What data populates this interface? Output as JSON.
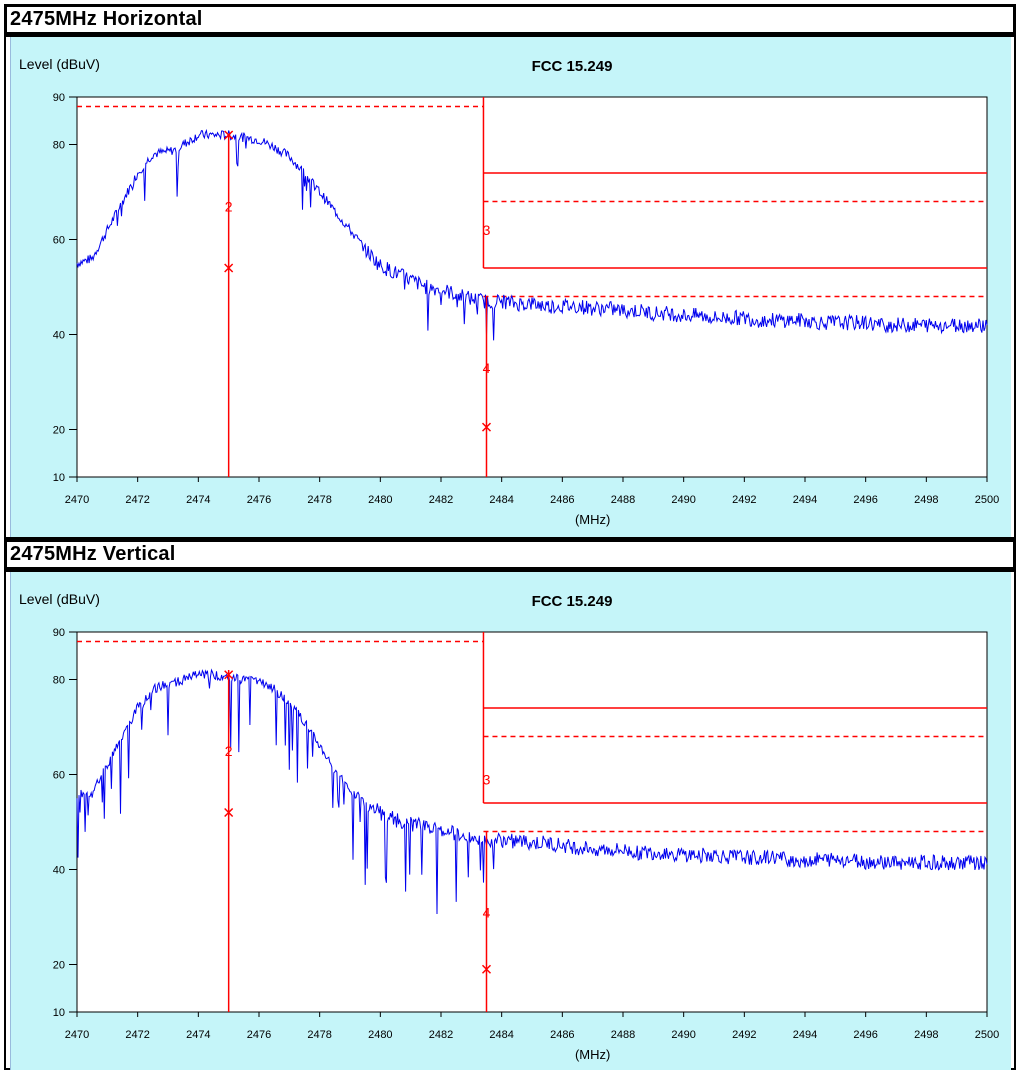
{
  "colors": {
    "trace": "#0000ee",
    "limit": "#ff0000",
    "panel_bg": "#c5f5f9",
    "plot_bg": "#ffffff"
  },
  "chart_data": [
    {
      "type": "line",
      "title": "FCC 15.249",
      "section_title": "2475MHz Horizontal",
      "ylabel": "Level (dBuV)",
      "xlabel": "(MHz)",
      "xlim": [
        2470,
        2500
      ],
      "ylim": [
        10,
        90
      ],
      "x_ticks": [
        2470,
        2472,
        2474,
        2476,
        2478,
        2480,
        2482,
        2484,
        2486,
        2488,
        2490,
        2492,
        2494,
        2496,
        2498,
        2500
      ],
      "y_ticks": [
        10,
        20,
        40,
        60,
        80,
        90
      ],
      "grid": false,
      "limit_lines": [
        {
          "style": "dashed",
          "x_from": 2470,
          "x_to": 2483.4,
          "y": 88
        },
        {
          "style": "solid",
          "x_from": 2483.4,
          "x_to": 2500,
          "y": 74
        },
        {
          "style": "dashed",
          "x_from": 2483.4,
          "x_to": 2500,
          "y": 68
        },
        {
          "style": "solid",
          "x_from": 2483.4,
          "x_to": 2500,
          "y": 54
        },
        {
          "style": "dashed",
          "x_from": 2483.4,
          "x_to": 2500,
          "y": 48
        }
      ],
      "band_edge_x": 2483.4,
      "vertical_markers": [
        {
          "x": 2475,
          "style": "solid"
        },
        {
          "x": 2483.5,
          "style": "solid"
        }
      ],
      "markers": [
        {
          "label": "",
          "x": 2475,
          "y": 82,
          "symbol": "x"
        },
        {
          "label": "2",
          "x": 2475,
          "y": 67,
          "symbol": "text"
        },
        {
          "label": "",
          "x": 2475,
          "y": 54,
          "symbol": "x"
        },
        {
          "label": "3",
          "x": 2483.5,
          "y": 62,
          "symbol": "text"
        },
        {
          "label": "4",
          "x": 2483.5,
          "y": 33,
          "symbol": "text"
        },
        {
          "label": "",
          "x": 2483.5,
          "y": 20.5,
          "symbol": "x"
        }
      ],
      "series": [
        {
          "x": [
            2470,
            2470.5,
            2471,
            2471.5,
            2472,
            2472.5,
            2473,
            2473.3,
            2473.5,
            2474,
            2474.5,
            2475,
            2475.5,
            2476,
            2476.5,
            2477,
            2477.5,
            2478,
            2478.5,
            2479,
            2479.5,
            2480,
            2480.5,
            2481,
            2481.5,
            2482,
            2482.5,
            2483,
            2483.5,
            2484,
            2484.5,
            2485,
            2485.5,
            2486,
            2486.5,
            2487,
            2487.5,
            2488,
            2488.5,
            2489,
            2489.5,
            2490,
            2490.5,
            2491,
            2491.5,
            2492,
            2492.5,
            2493,
            2493.5,
            2494,
            2494.5,
            2495,
            2495.5,
            2496,
            2496.5,
            2497,
            2497.5,
            2498,
            2498.5,
            2499,
            2499.5,
            2500
          ],
          "values": [
            55,
            56,
            62,
            68,
            74,
            78,
            78.5,
            79,
            80,
            82,
            82,
            82,
            81.5,
            81,
            79.5,
            77.5,
            74,
            70,
            66,
            62,
            58,
            54.5,
            53,
            51.5,
            50,
            49.5,
            48.5,
            47.5,
            47,
            47,
            46.5,
            46.5,
            46,
            46,
            46,
            45.5,
            45.5,
            45,
            45,
            44.5,
            44.5,
            44,
            44,
            43.5,
            43.5,
            43.5,
            43,
            43,
            43,
            43,
            42.5,
            42.5,
            42.5,
            42.5,
            42,
            42,
            42,
            42,
            42,
            42,
            42,
            42
          ]
        }
      ]
    },
    {
      "type": "line",
      "title": "FCC 15.249",
      "section_title": "2475MHz Vertical",
      "ylabel": "Level (dBuV)",
      "xlabel": "(MHz)",
      "xlim": [
        2470,
        2500
      ],
      "ylim": [
        10,
        90
      ],
      "x_ticks": [
        2470,
        2472,
        2474,
        2476,
        2478,
        2480,
        2482,
        2484,
        2486,
        2488,
        2490,
        2492,
        2494,
        2496,
        2498,
        2500
      ],
      "y_ticks": [
        10,
        20,
        40,
        60,
        80,
        90
      ],
      "grid": false,
      "limit_lines": [
        {
          "style": "dashed",
          "x_from": 2470,
          "x_to": 2483.4,
          "y": 88
        },
        {
          "style": "solid",
          "x_from": 2483.4,
          "x_to": 2500,
          "y": 74
        },
        {
          "style": "dashed",
          "x_from": 2483.4,
          "x_to": 2500,
          "y": 68
        },
        {
          "style": "solid",
          "x_from": 2483.4,
          "x_to": 2500,
          "y": 54
        },
        {
          "style": "dashed",
          "x_from": 2483.4,
          "x_to": 2500,
          "y": 48
        }
      ],
      "band_edge_x": 2483.4,
      "vertical_markers": [
        {
          "x": 2475,
          "style": "solid"
        },
        {
          "x": 2483.5,
          "style": "solid"
        }
      ],
      "markers": [
        {
          "label": "",
          "x": 2475,
          "y": 81,
          "symbol": "x"
        },
        {
          "label": "2",
          "x": 2475,
          "y": 65,
          "symbol": "text"
        },
        {
          "label": "",
          "x": 2475,
          "y": 52,
          "symbol": "x"
        },
        {
          "label": "3",
          "x": 2483.5,
          "y": 59,
          "symbol": "text"
        },
        {
          "label": "4",
          "x": 2483.5,
          "y": 31,
          "symbol": "text"
        },
        {
          "label": "",
          "x": 2483.5,
          "y": 19,
          "symbol": "x"
        }
      ],
      "series": [
        {
          "x": [
            2470,
            2470.5,
            2471,
            2471.5,
            2472,
            2472.5,
            2473,
            2473.5,
            2474,
            2474.5,
            2475,
            2475.5,
            2476,
            2476.5,
            2477,
            2477.5,
            2478,
            2478.5,
            2479,
            2479.5,
            2480,
            2480.5,
            2481,
            2481.5,
            2482,
            2482.5,
            2483,
            2483.5,
            2484,
            2484.5,
            2485,
            2485.5,
            2486,
            2486.5,
            2487,
            2487.5,
            2488,
            2488.5,
            2489,
            2489.5,
            2490,
            2490.5,
            2491,
            2491.5,
            2492,
            2492.5,
            2493,
            2493.5,
            2494,
            2494.5,
            2495,
            2495.5,
            2496,
            2496.5,
            2497,
            2497.5,
            2498,
            2498.5,
            2499,
            2499.5,
            2500
          ],
          "values": [
            56,
            56,
            62,
            68,
            74,
            78,
            79,
            80,
            81,
            81,
            80.5,
            80,
            79.5,
            78,
            75,
            71,
            66,
            61,
            57,
            54,
            52,
            50.5,
            49.5,
            49,
            48.5,
            47.5,
            47,
            46.5,
            46,
            46,
            45.5,
            45.5,
            45,
            44.5,
            44.5,
            44,
            44,
            43.5,
            43.5,
            43.5,
            43,
            43,
            43,
            42.5,
            42.5,
            42.5,
            42.5,
            42,
            42,
            42,
            42,
            42,
            41.5,
            41.5,
            41.5,
            41.5,
            41.5,
            41.5,
            41.5,
            41.5,
            41.5
          ]
        }
      ]
    }
  ]
}
